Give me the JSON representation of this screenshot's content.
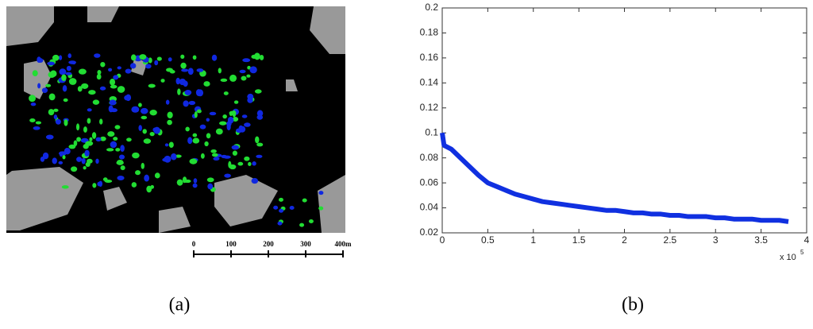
{
  "map": {
    "scale_bar_labels": [
      "0",
      "100",
      "200",
      "300",
      "400m"
    ],
    "caption": "(a)"
  },
  "chart_data": {
    "type": "line",
    "caption": "(b)",
    "x_multiplier": {
      "base": "x 10",
      "exponent": "5"
    },
    "xlim": [
      0,
      4
    ],
    "xticks": [
      0,
      0.5,
      1,
      1.5,
      2,
      2.5,
      3,
      3.5,
      4
    ],
    "ylim": [
      0.02,
      0.2
    ],
    "yticks": [
      0.02,
      0.04,
      0.06,
      0.08,
      0.1,
      0.12,
      0.14,
      0.16,
      0.18,
      0.2
    ],
    "grid": false,
    "series": [
      {
        "color": "#1030e0",
        "x": [
          0,
          0.02,
          0.1,
          0.2,
          0.3,
          0.4,
          0.5,
          0.6,
          0.7,
          0.8,
          0.9,
          1.0,
          1.1,
          1.2,
          1.3,
          1.4,
          1.5,
          1.6,
          1.7,
          1.8,
          1.9,
          2.0,
          2.1,
          2.2,
          2.3,
          2.4,
          2.5,
          2.6,
          2.7,
          2.8,
          2.9,
          3.0,
          3.1,
          3.2,
          3.3,
          3.4,
          3.5,
          3.6,
          3.7,
          3.8
        ],
        "values": [
          0.1,
          0.09,
          0.087,
          0.08,
          0.073,
          0.066,
          0.06,
          0.057,
          0.054,
          0.051,
          0.049,
          0.047,
          0.045,
          0.044,
          0.043,
          0.042,
          0.041,
          0.04,
          0.039,
          0.038,
          0.038,
          0.037,
          0.036,
          0.036,
          0.035,
          0.035,
          0.034,
          0.034,
          0.033,
          0.033,
          0.033,
          0.032,
          0.032,
          0.031,
          0.031,
          0.031,
          0.03,
          0.03,
          0.03,
          0.029
        ]
      }
    ]
  }
}
